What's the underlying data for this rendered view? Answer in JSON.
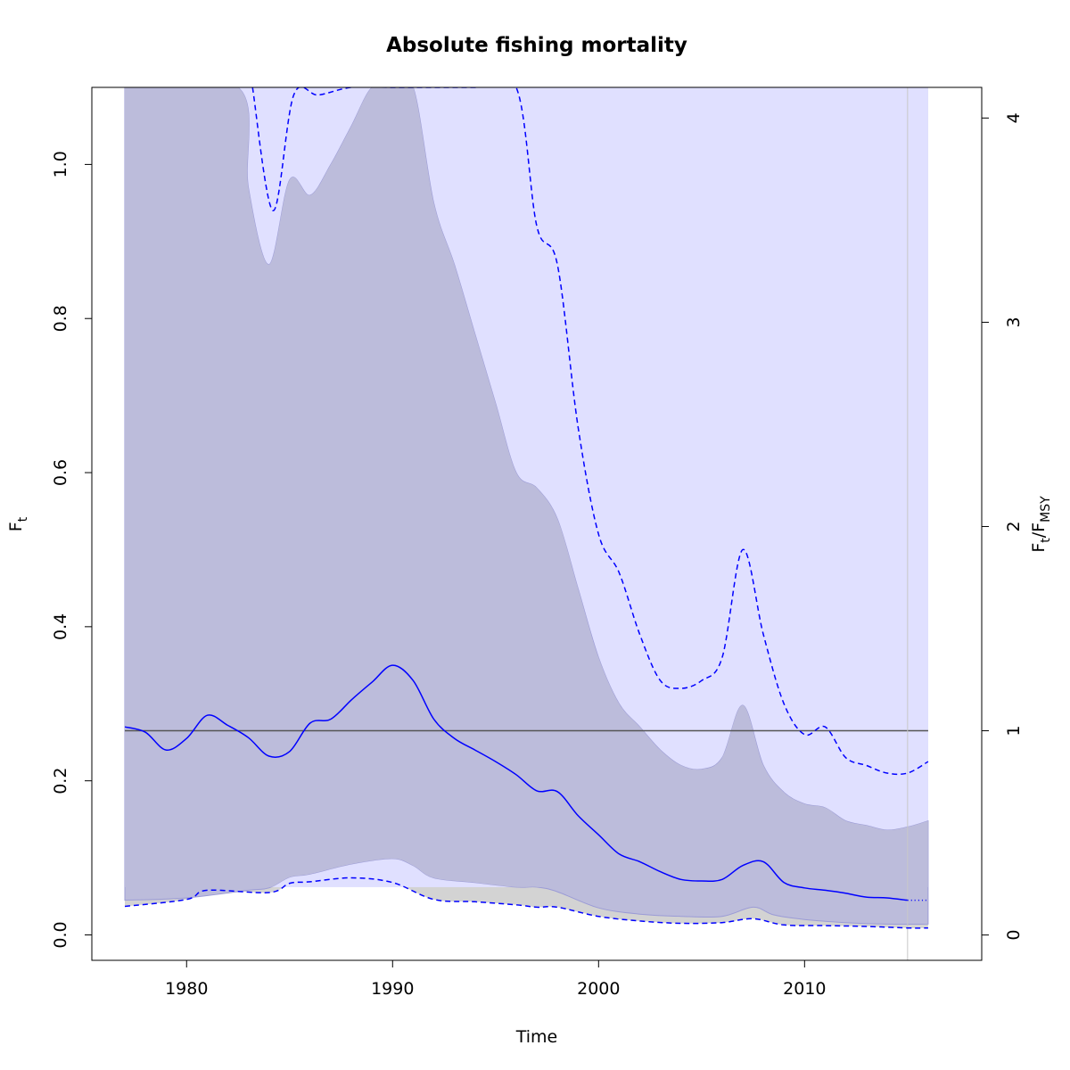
{
  "chart_data": {
    "type": "line",
    "title": "Absolute fishing mortality",
    "xlabel": "Time",
    "ylabel_main": "F",
    "ylabel_sub": "t",
    "y2label_main": "F",
    "y2label_sub1": "t",
    "y2label_mid": "/F",
    "y2label_sub2": "MSY",
    "xlim": [
      1975.4,
      2018.6
    ],
    "ylim": [
      -0.033,
      1.1
    ],
    "y2lim": [
      -0.124,
      4.15
    ],
    "x_ticks": [
      "1980",
      "1990",
      "2000",
      "2010"
    ],
    "y_ticks": [
      "0.0",
      "0.2",
      "0.4",
      "0.6",
      "0.8",
      "1.0"
    ],
    "y2_ticks": [
      "0",
      "1",
      "2",
      "3",
      "4"
    ],
    "x_tick_values": [
      1980,
      1990,
      2000,
      2010
    ],
    "y_tick_values": [
      0.0,
      0.2,
      0.4,
      0.6,
      0.8,
      1.0
    ],
    "y2_tick_values": [
      0,
      1,
      2,
      3,
      4
    ],
    "fmsy": 0.265,
    "last_observation_year": 2015,
    "colors": {
      "ft_line": "#0000ff",
      "ratio_band": "#d3d3d3",
      "fmsy_band": "#e0e0ff",
      "ft_band": "#bcbcdb",
      "ft_band_border": "#9b9bd6",
      "fmsy_line": "#555555",
      "vline": "#c8c8c8"
    },
    "series": [
      {
        "x": [
          1977,
          1978,
          1979,
          1980,
          1981,
          1982,
          1983,
          1984,
          1985,
          1986,
          1987,
          1988,
          1989,
          1990,
          1991,
          1992,
          1993,
          1994,
          1995,
          1996,
          1997,
          1998,
          1999,
          2000,
          2001,
          2002,
          2003,
          2004,
          2005,
          2006,
          2007,
          2008,
          2009,
          2010,
          2011,
          2012,
          2013,
          2014,
          2015
        ],
        "values": [
          0.27,
          0.263,
          0.24,
          0.255,
          0.285,
          0.272,
          0.256,
          0.232,
          0.238,
          0.275,
          0.28,
          0.305,
          0.328,
          0.35,
          0.33,
          0.28,
          0.255,
          0.24,
          0.225,
          0.208,
          0.187,
          0.186,
          0.155,
          0.13,
          0.105,
          0.095,
          0.082,
          0.072,
          0.07,
          0.072,
          0.09,
          0.095,
          0.068,
          0.061,
          0.058,
          0.054,
          0.049,
          0.048,
          0.045
        ],
        "forecast_x": [
          2015,
          2016
        ],
        "forecast_values": [
          0.045,
          0.045
        ]
      },
      {
        "x": [
          1983.2,
          1984.2,
          1985.2,
          1986.4,
          1988,
          1990,
          1992,
          1994,
          1996,
          1997,
          1998,
          1999,
          2000,
          2001,
          2002,
          2003,
          2004,
          2005,
          2006,
          2007,
          2008,
          2009,
          2010,
          2011,
          2012,
          2013,
          2014,
          2015,
          2016
        ],
        "values": [
          1.1,
          0.94,
          1.09,
          1.09,
          1.1,
          1.1,
          1.1,
          1.1,
          1.1,
          0.92,
          0.87,
          0.66,
          0.52,
          0.47,
          0.39,
          0.33,
          0.32,
          0.33,
          0.36,
          0.5,
          0.39,
          0.3,
          0.26,
          0.27,
          0.23,
          0.22,
          0.21,
          0.21,
          0.225
        ]
      },
      {
        "x": [
          1977,
          1980,
          1981,
          1984,
          1985,
          1986,
          1988,
          1990,
          1992,
          1994,
          1996,
          1997,
          1998,
          2000,
          2002,
          2004,
          2006,
          2007.5,
          2009,
          2011,
          2013,
          2015,
          2016
        ],
        "values": [
          0.037,
          0.046,
          0.058,
          0.055,
          0.067,
          0.069,
          0.074,
          0.068,
          0.046,
          0.043,
          0.039,
          0.036,
          0.036,
          0.024,
          0.018,
          0.015,
          0.016,
          0.021,
          0.013,
          0.012,
          0.011,
          0.009,
          0.009
        ]
      }
    ],
    "ft_ci_upper": {
      "x": [
        1977,
        1982.5,
        1983,
        1984,
        1985,
        1986,
        1987,
        1988,
        1989,
        1990,
        1991,
        1992,
        1993,
        1994,
        1995,
        1996,
        1997,
        1998,
        1999,
        2000,
        2001,
        2002,
        2003,
        2004,
        2005,
        2006,
        2007,
        2008,
        2009,
        2010,
        2011,
        2012,
        2013,
        2014,
        2015,
        2016
      ],
      "values": [
        1.1,
        1.1,
        0.97,
        0.87,
        0.98,
        0.96,
        1.0,
        1.05,
        1.1,
        1.1,
        1.1,
        0.95,
        0.87,
        0.78,
        0.69,
        0.6,
        0.58,
        0.54,
        0.45,
        0.36,
        0.3,
        0.27,
        0.24,
        0.22,
        0.215,
        0.23,
        0.298,
        0.22,
        0.185,
        0.17,
        0.165,
        0.148,
        0.142,
        0.136,
        0.14,
        0.148
      ]
    },
    "ft_ci_lower": {
      "x": [
        1977,
        1980,
        1983,
        1984,
        1985,
        1986,
        1988,
        1990,
        1991,
        1992,
        1994,
        1996,
        1997,
        1998,
        2000,
        2002,
        2004,
        2006,
        2007.5,
        2008.5,
        2010,
        2012,
        2014,
        2016
      ],
      "values": [
        0.045,
        0.048,
        0.058,
        0.061,
        0.075,
        0.079,
        0.092,
        0.099,
        0.09,
        0.074,
        0.068,
        0.062,
        0.062,
        0.056,
        0.035,
        0.027,
        0.024,
        0.024,
        0.036,
        0.026,
        0.02,
        0.016,
        0.014,
        0.014
      ]
    },
    "fmsy_ci": [
      0.062,
      1.1
    ]
  }
}
